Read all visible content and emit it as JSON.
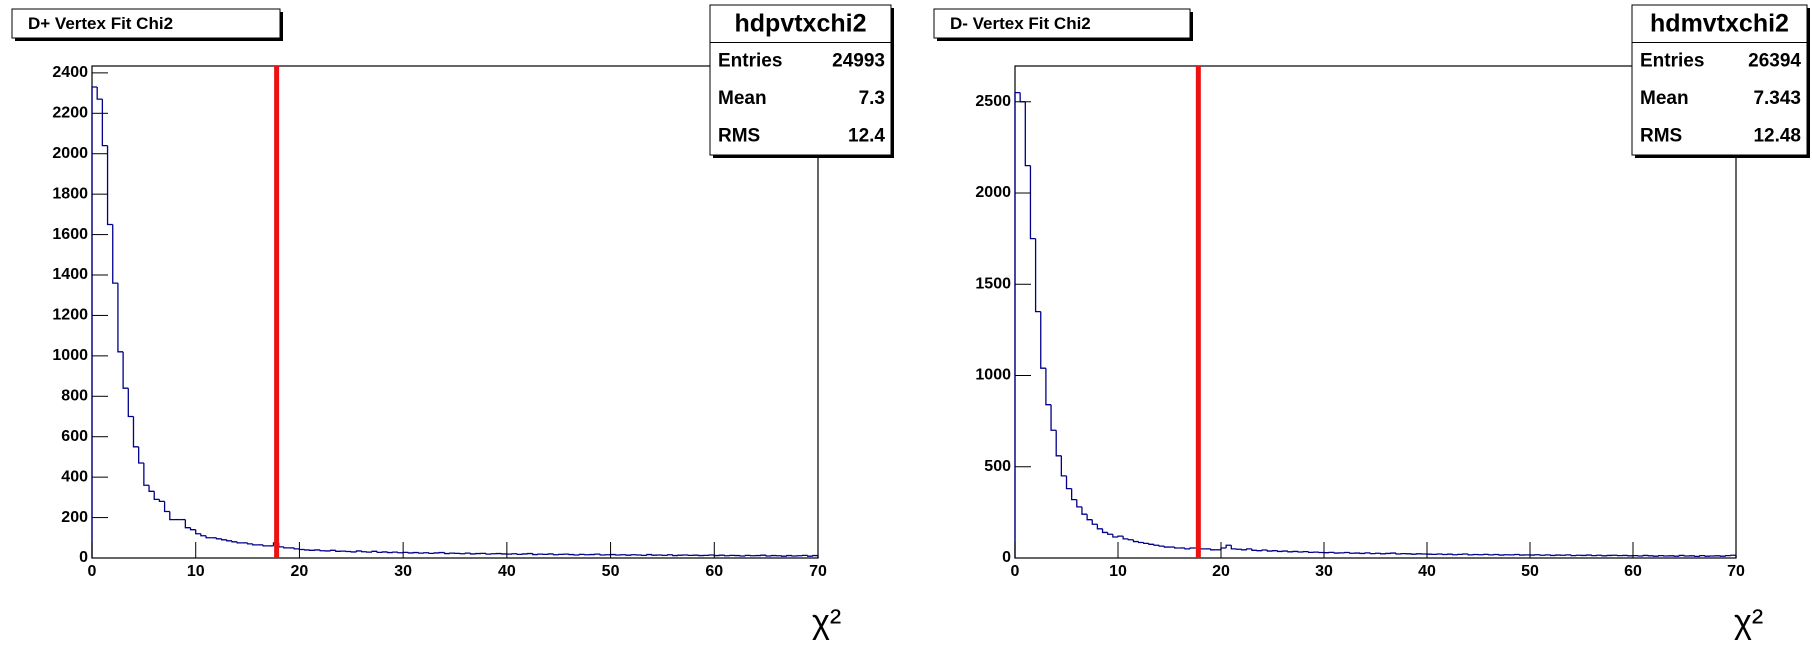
{
  "chart_data": [
    {
      "type": "histogram",
      "title": "D+ Vertex Fit Chi2",
      "x_label": "χ²",
      "bins": [
        0,
        0.5,
        1,
        1.5,
        2,
        2.5,
        3,
        3.5,
        4,
        4.5,
        5,
        5.5,
        6,
        6.5,
        7,
        7.5,
        8,
        8.5,
        9,
        9.5,
        10,
        10.5,
        11,
        11.5,
        12,
        12.5,
        13,
        13.5,
        14,
        14.5,
        15,
        15.5,
        16,
        16.5,
        17,
        17.5,
        18,
        18.5,
        19,
        19.5,
        20,
        20.5,
        21,
        21.5,
        22,
        22.5,
        23,
        23.5,
        24,
        24.5,
        25,
        25.5,
        26,
        26.5,
        27,
        27.5,
        28,
        28.5,
        29,
        29.5,
        30,
        30.5,
        31,
        31.5,
        32,
        32.5,
        33,
        33.5,
        34,
        34.5,
        35,
        35.5,
        36,
        36.5,
        37,
        37.5,
        38,
        38.5,
        39,
        39.5,
        40,
        40.5,
        41,
        41.5,
        42,
        42.5,
        43,
        43.5,
        44,
        44.5,
        45,
        45.5,
        46,
        46.5,
        47,
        47.5,
        48,
        48.5,
        49,
        49.5,
        50,
        50.5,
        51,
        51.5,
        52,
        52.5,
        53,
        53.5,
        54,
        54.5,
        55,
        55.5,
        56,
        56.5,
        57,
        57.5,
        58,
        58.5,
        59,
        59.5,
        60,
        60.5,
        61,
        61.5,
        62,
        62.5,
        63,
        63.5,
        64,
        64.5,
        65,
        65.5,
        66,
        66.5,
        67,
        67.5,
        68,
        68.5,
        69,
        69.5,
        70
      ],
      "values": [
        2330,
        2270,
        2040,
        1650,
        1360,
        1020,
        840,
        700,
        550,
        470,
        360,
        330,
        290,
        280,
        230,
        190,
        190,
        190,
        150,
        140,
        120,
        110,
        100,
        100,
        95,
        90,
        85,
        80,
        75,
        75,
        70,
        65,
        65,
        60,
        60,
        75,
        55,
        50,
        50,
        45,
        42,
        40,
        38,
        40,
        36,
        35,
        38,
        33,
        34,
        32,
        30,
        35,
        31,
        29,
        33,
        28,
        30,
        27,
        29,
        26,
        28,
        25,
        27,
        24,
        26,
        23,
        25,
        27,
        22,
        24,
        23,
        21,
        24,
        20,
        22,
        23,
        19,
        21,
        22,
        20,
        19,
        21,
        18,
        20,
        22,
        17,
        19,
        18,
        20,
        16,
        18,
        19,
        17,
        15,
        18,
        16,
        17,
        19,
        15,
        16,
        17,
        15,
        16,
        14,
        16,
        15,
        13,
        17,
        14,
        15,
        13,
        16,
        12,
        14,
        15,
        13,
        14,
        12,
        13,
        15,
        12,
        14,
        11,
        13,
        12,
        10,
        13,
        11,
        12,
        14,
        10,
        12,
        11,
        9,
        12,
        10,
        11,
        13,
        9,
        12
      ],
      "color": "#00008b",
      "xlim": [
        0,
        70
      ],
      "xticks": [
        0,
        10,
        20,
        30,
        40,
        50,
        60,
        70
      ],
      "ylim": [
        0,
        2434
      ],
      "yticks": [
        0,
        200,
        400,
        600,
        800,
        1000,
        1200,
        1400,
        1600,
        1800,
        2000,
        2200,
        2400
      ],
      "vlines": [
        {
          "x": 17.8,
          "color": "#ee1111"
        }
      ],
      "stats": {
        "title": "hdpvtxchi2",
        "rows": [
          {
            "label": "Entries",
            "value": 24993
          },
          {
            "label": "Mean",
            "value": 7.3
          },
          {
            "label": "RMS",
            "value": 12.4
          }
        ]
      }
    },
    {
      "type": "histogram",
      "title": "D- Vertex Fit Chi2",
      "x_label": "χ²",
      "bins": [
        0,
        0.5,
        1,
        1.5,
        2,
        2.5,
        3,
        3.5,
        4,
        4.5,
        5,
        5.5,
        6,
        6.5,
        7,
        7.5,
        8,
        8.5,
        9,
        9.5,
        10,
        10.5,
        11,
        11.5,
        12,
        12.5,
        13,
        13.5,
        14,
        14.5,
        15,
        15.5,
        16,
        16.5,
        17,
        17.5,
        18,
        18.5,
        19,
        19.5,
        20,
        20.5,
        21,
        21.5,
        22,
        22.5,
        23,
        23.5,
        24,
        24.5,
        25,
        25.5,
        26,
        26.5,
        27,
        27.5,
        28,
        28.5,
        29,
        29.5,
        30,
        30.5,
        31,
        31.5,
        32,
        32.5,
        33,
        33.5,
        34,
        34.5,
        35,
        35.5,
        36,
        36.5,
        37,
        37.5,
        38,
        38.5,
        39,
        39.5,
        40,
        40.5,
        41,
        41.5,
        42,
        42.5,
        43,
        43.5,
        44,
        44.5,
        45,
        45.5,
        46,
        46.5,
        47,
        47.5,
        48,
        48.5,
        49,
        49.5,
        50,
        50.5,
        51,
        51.5,
        52,
        52.5,
        53,
        53.5,
        54,
        54.5,
        55,
        55.5,
        56,
        56.5,
        57,
        57.5,
        58,
        58.5,
        59,
        59.5,
        60,
        60.5,
        61,
        61.5,
        62,
        62.5,
        63,
        63.5,
        64,
        64.5,
        65,
        65.5,
        66,
        66.5,
        67,
        67.5,
        68,
        68.5,
        69,
        69.5,
        70
      ],
      "values": [
        2550,
        2500,
        2150,
        1750,
        1350,
        1040,
        840,
        700,
        560,
        450,
        380,
        320,
        280,
        240,
        210,
        185,
        160,
        140,
        130,
        115,
        120,
        105,
        100,
        90,
        85,
        80,
        75,
        70,
        65,
        60,
        60,
        55,
        55,
        50,
        55,
        55,
        50,
        50,
        45,
        45,
        55,
        70,
        50,
        48,
        45,
        50,
        42,
        40,
        44,
        38,
        40,
        36,
        38,
        34,
        36,
        33,
        35,
        31,
        32,
        30,
        29,
        31,
        27,
        28,
        30,
        26,
        27,
        25,
        28,
        24,
        26,
        23,
        25,
        27,
        22,
        24,
        23,
        21,
        23,
        22,
        21,
        20,
        22,
        19,
        21,
        18,
        20,
        22,
        17,
        19,
        18,
        20,
        17,
        19,
        16,
        18,
        17,
        19,
        16,
        17,
        16,
        18,
        15,
        17,
        14,
        16,
        15,
        17,
        13,
        15,
        14,
        16,
        13,
        15,
        12,
        14,
        15,
        13,
        14,
        12,
        13,
        11,
        14,
        12,
        10,
        13,
        11,
        12,
        10,
        14,
        11,
        12,
        9,
        13,
        10,
        11,
        12,
        10,
        13,
        15
      ],
      "color": "#00008b",
      "xlim": [
        0,
        70
      ],
      "xticks": [
        0,
        10,
        20,
        30,
        40,
        50,
        60,
        70
      ],
      "ylim": [
        0,
        2696
      ],
      "yticks": [
        0,
        500,
        1000,
        1500,
        2000,
        2500
      ],
      "vlines": [
        {
          "x": 17.8,
          "color": "#ee1111"
        }
      ],
      "stats": {
        "title": "hdmvtxchi2",
        "rows": [
          {
            "label": "Entries",
            "value": 26394
          },
          {
            "label": "Mean",
            "value": 7.343
          },
          {
            "label": "RMS",
            "value": 12.48
          }
        ]
      }
    }
  ]
}
